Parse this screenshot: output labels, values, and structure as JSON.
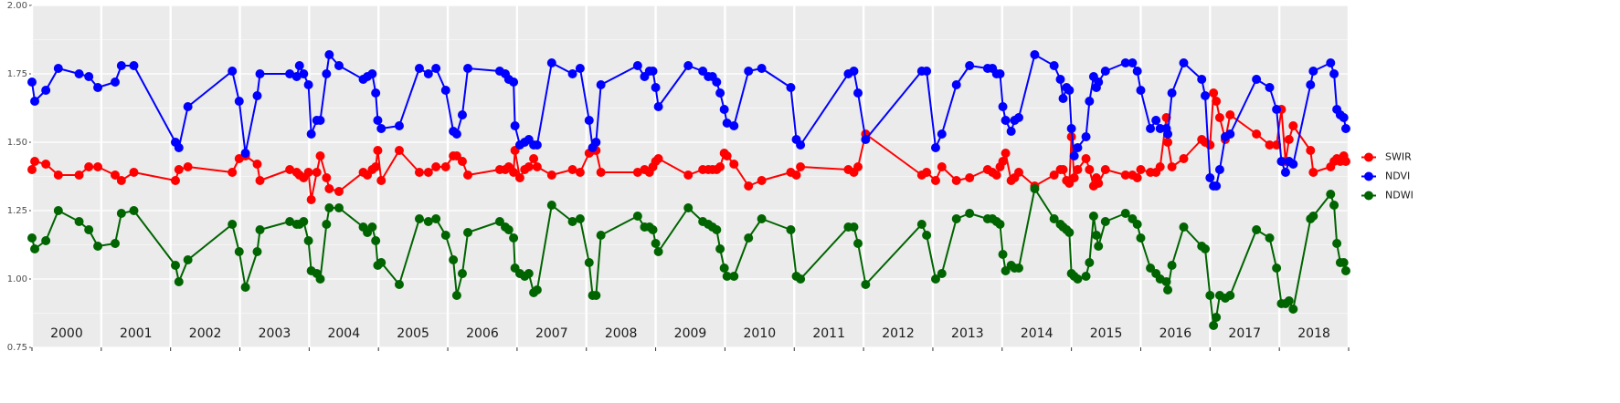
{
  "chart_data": {
    "type": "line",
    "x": [
      2000.0,
      2000.04,
      2000.2,
      2000.38,
      2000.68,
      2000.82,
      2000.95,
      2001.2,
      2001.29,
      2001.47,
      2002.07,
      2002.12,
      2002.25,
      2002.89,
      2002.99,
      2003.08,
      2003.25,
      2003.29,
      2003.72,
      2003.82,
      2003.86,
      2003.92,
      2003.99,
      2004.03,
      2004.11,
      2004.16,
      2004.25,
      2004.29,
      2004.43,
      2004.78,
      2004.84,
      2004.91,
      2004.96,
      2004.99,
      2005.04,
      2005.3,
      2005.59,
      2005.72,
      2005.83,
      2005.97,
      2006.08,
      2006.13,
      2006.21,
      2006.29,
      2006.75,
      2006.83,
      2006.88,
      2006.95,
      2006.97,
      2007.04,
      2007.11,
      2007.17,
      2007.24,
      2007.29,
      2007.5,
      2007.8,
      2007.91,
      2008.04,
      2008.09,
      2008.14,
      2008.21,
      2008.74,
      2008.84,
      2008.91,
      2008.96,
      2009.0,
      2009.04,
      2009.47,
      2009.68,
      2009.76,
      2009.82,
      2009.88,
      2009.93,
      2009.99,
      2010.03,
      2010.13,
      2010.34,
      2010.53,
      2010.95,
      2011.03,
      2011.09,
      2011.78,
      2011.86,
      2011.92,
      2012.03,
      2012.84,
      2012.91,
      2013.04,
      2013.13,
      2013.34,
      2013.53,
      2013.79,
      2013.86,
      2013.92,
      2013.97,
      2014.01,
      2014.05,
      2014.13,
      2014.18,
      2014.24,
      2014.47,
      2014.75,
      2014.84,
      2014.88,
      2014.93,
      2014.97,
      2015.0,
      2015.04,
      2015.09,
      2015.21,
      2015.26,
      2015.32,
      2015.36,
      2015.39,
      2015.49,
      2015.78,
      2015.88,
      2015.95,
      2016.0,
      2016.14,
      2016.22,
      2016.28,
      2016.37,
      2016.39,
      2016.45,
      2016.62,
      2016.88,
      2016.93,
      2017.0,
      2017.05,
      2017.09,
      2017.14,
      2017.22,
      2017.29,
      2017.67,
      2017.86,
      2017.96,
      2018.03,
      2018.09,
      2018.14,
      2018.2,
      2018.45,
      2018.49,
      2018.74,
      2018.79,
      2018.83,
      2018.88,
      2018.93,
      2018.96
    ],
    "series": [
      {
        "name": "SWIR",
        "color": "#ff0000",
        "values": [
          1.4,
          1.43,
          1.42,
          1.38,
          1.38,
          1.41,
          1.41,
          1.38,
          1.36,
          1.39,
          1.36,
          1.4,
          1.41,
          1.39,
          1.44,
          1.45,
          1.42,
          1.36,
          1.4,
          1.39,
          1.38,
          1.37,
          1.39,
          1.29,
          1.39,
          1.45,
          1.37,
          1.33,
          1.32,
          1.39,
          1.38,
          1.4,
          1.41,
          1.47,
          1.36,
          1.47,
          1.39,
          1.39,
          1.41,
          1.41,
          1.45,
          1.45,
          1.43,
          1.38,
          1.4,
          1.4,
          1.41,
          1.39,
          1.47,
          1.37,
          1.4,
          1.41,
          1.44,
          1.41,
          1.38,
          1.4,
          1.39,
          1.46,
          1.47,
          1.47,
          1.39,
          1.39,
          1.4,
          1.39,
          1.41,
          1.43,
          1.44,
          1.38,
          1.4,
          1.4,
          1.4,
          1.4,
          1.41,
          1.46,
          1.45,
          1.42,
          1.34,
          1.36,
          1.39,
          1.38,
          1.41,
          1.4,
          1.39,
          1.41,
          1.53,
          1.38,
          1.39,
          1.36,
          1.41,
          1.36,
          1.37,
          1.4,
          1.39,
          1.38,
          1.41,
          1.43,
          1.46,
          1.36,
          1.37,
          1.39,
          1.34,
          1.38,
          1.4,
          1.4,
          1.36,
          1.35,
          1.52,
          1.37,
          1.4,
          1.44,
          1.4,
          1.34,
          1.37,
          1.35,
          1.4,
          1.38,
          1.38,
          1.37,
          1.4,
          1.39,
          1.39,
          1.41,
          1.59,
          1.5,
          1.41,
          1.44,
          1.51,
          1.5,
          1.49,
          1.68,
          1.65,
          1.59,
          1.51,
          1.6,
          1.53,
          1.49,
          1.49,
          1.62,
          1.43,
          1.51,
          1.56,
          1.47,
          1.39,
          1.41,
          1.43,
          1.44,
          1.43,
          1.45,
          1.43
        ]
      },
      {
        "name": "NDVI",
        "color": "#0000ff",
        "values": [
          1.72,
          1.65,
          1.69,
          1.77,
          1.75,
          1.74,
          1.7,
          1.72,
          1.78,
          1.78,
          1.5,
          1.48,
          1.63,
          1.76,
          1.65,
          1.46,
          1.67,
          1.75,
          1.75,
          1.74,
          1.78,
          1.75,
          1.71,
          1.53,
          1.58,
          1.58,
          1.75,
          1.82,
          1.78,
          1.73,
          1.74,
          1.75,
          1.68,
          1.58,
          1.55,
          1.56,
          1.77,
          1.75,
          1.77,
          1.69,
          1.54,
          1.53,
          1.6,
          1.77,
          1.76,
          1.75,
          1.73,
          1.72,
          1.56,
          1.49,
          1.5,
          1.51,
          1.49,
          1.49,
          1.79,
          1.75,
          1.77,
          1.58,
          1.48,
          1.5,
          1.71,
          1.78,
          1.74,
          1.76,
          1.76,
          1.7,
          1.63,
          1.78,
          1.76,
          1.74,
          1.74,
          1.72,
          1.68,
          1.62,
          1.57,
          1.56,
          1.76,
          1.77,
          1.7,
          1.51,
          1.49,
          1.75,
          1.76,
          1.68,
          1.51,
          1.76,
          1.76,
          1.48,
          1.53,
          1.71,
          1.78,
          1.77,
          1.77,
          1.75,
          1.75,
          1.63,
          1.58,
          1.54,
          1.58,
          1.59,
          1.82,
          1.78,
          1.73,
          1.66,
          1.7,
          1.69,
          1.55,
          1.45,
          1.48,
          1.52,
          1.65,
          1.74,
          1.7,
          1.72,
          1.76,
          1.79,
          1.79,
          1.76,
          1.69,
          1.55,
          1.58,
          1.55,
          1.55,
          1.53,
          1.68,
          1.79,
          1.73,
          1.67,
          1.37,
          1.34,
          1.34,
          1.4,
          1.52,
          1.53,
          1.73,
          1.7,
          1.62,
          1.43,
          1.39,
          1.43,
          1.42,
          1.71,
          1.76,
          1.79,
          1.75,
          1.62,
          1.6,
          1.59,
          1.55
        ]
      },
      {
        "name": "NDWI",
        "color": "#006400",
        "values": [
          1.15,
          1.11,
          1.14,
          1.25,
          1.21,
          1.18,
          1.12,
          1.13,
          1.24,
          1.25,
          1.05,
          0.99,
          1.07,
          1.2,
          1.1,
          0.97,
          1.1,
          1.18,
          1.21,
          1.2,
          1.2,
          1.21,
          1.14,
          1.03,
          1.02,
          1.0,
          1.2,
          1.26,
          1.26,
          1.19,
          1.17,
          1.19,
          1.14,
          1.05,
          1.06,
          0.98,
          1.22,
          1.21,
          1.22,
          1.16,
          1.07,
          0.94,
          1.02,
          1.17,
          1.21,
          1.19,
          1.18,
          1.15,
          1.04,
          1.02,
          1.01,
          1.02,
          0.95,
          0.96,
          1.27,
          1.21,
          1.22,
          1.06,
          0.94,
          0.94,
          1.16,
          1.23,
          1.19,
          1.19,
          1.18,
          1.13,
          1.1,
          1.26,
          1.21,
          1.2,
          1.19,
          1.18,
          1.11,
          1.04,
          1.01,
          1.01,
          1.15,
          1.22,
          1.18,
          1.01,
          1.0,
          1.19,
          1.19,
          1.13,
          0.98,
          1.2,
          1.16,
          1.0,
          1.02,
          1.22,
          1.24,
          1.22,
          1.22,
          1.21,
          1.2,
          1.09,
          1.03,
          1.05,
          1.04,
          1.04,
          1.33,
          1.22,
          1.2,
          1.19,
          1.18,
          1.17,
          1.02,
          1.01,
          1.0,
          1.01,
          1.06,
          1.23,
          1.16,
          1.12,
          1.21,
          1.24,
          1.22,
          1.2,
          1.15,
          1.04,
          1.02,
          1.0,
          0.99,
          0.96,
          1.05,
          1.19,
          1.12,
          1.11,
          0.94,
          0.83,
          0.86,
          0.94,
          0.93,
          0.94,
          1.18,
          1.15,
          1.04,
          0.91,
          0.91,
          0.92,
          0.89,
          1.22,
          1.23,
          1.31,
          1.27,
          1.13,
          1.06,
          1.06,
          1.03
        ]
      }
    ],
    "xlim": [
      2000,
      2019
    ],
    "xticks": [
      2000,
      2001,
      2002,
      2003,
      2004,
      2005,
      2006,
      2007,
      2008,
      2009,
      2010,
      2011,
      2012,
      2013,
      2014,
      2015,
      2016,
      2017,
      2018,
      2019
    ],
    "year_labels": [
      "2000",
      "2001",
      "2002",
      "2003",
      "2004",
      "2005",
      "2006",
      "2007",
      "2008",
      "2009",
      "2010",
      "2011",
      "2012",
      "2013",
      "2014",
      "2015",
      "2016",
      "2017",
      "2018"
    ],
    "ylim": [
      0.75,
      2
    ],
    "yticks": [
      0.75,
      {
        "value": 1,
        "label": "1.00"
      },
      1.25,
      {
        "value": 1.5,
        "label": "1.50"
      },
      1.75,
      {
        "value": 2,
        "label": "2.00"
      }
    ],
    "grid": true,
    "legend": "right"
  }
}
